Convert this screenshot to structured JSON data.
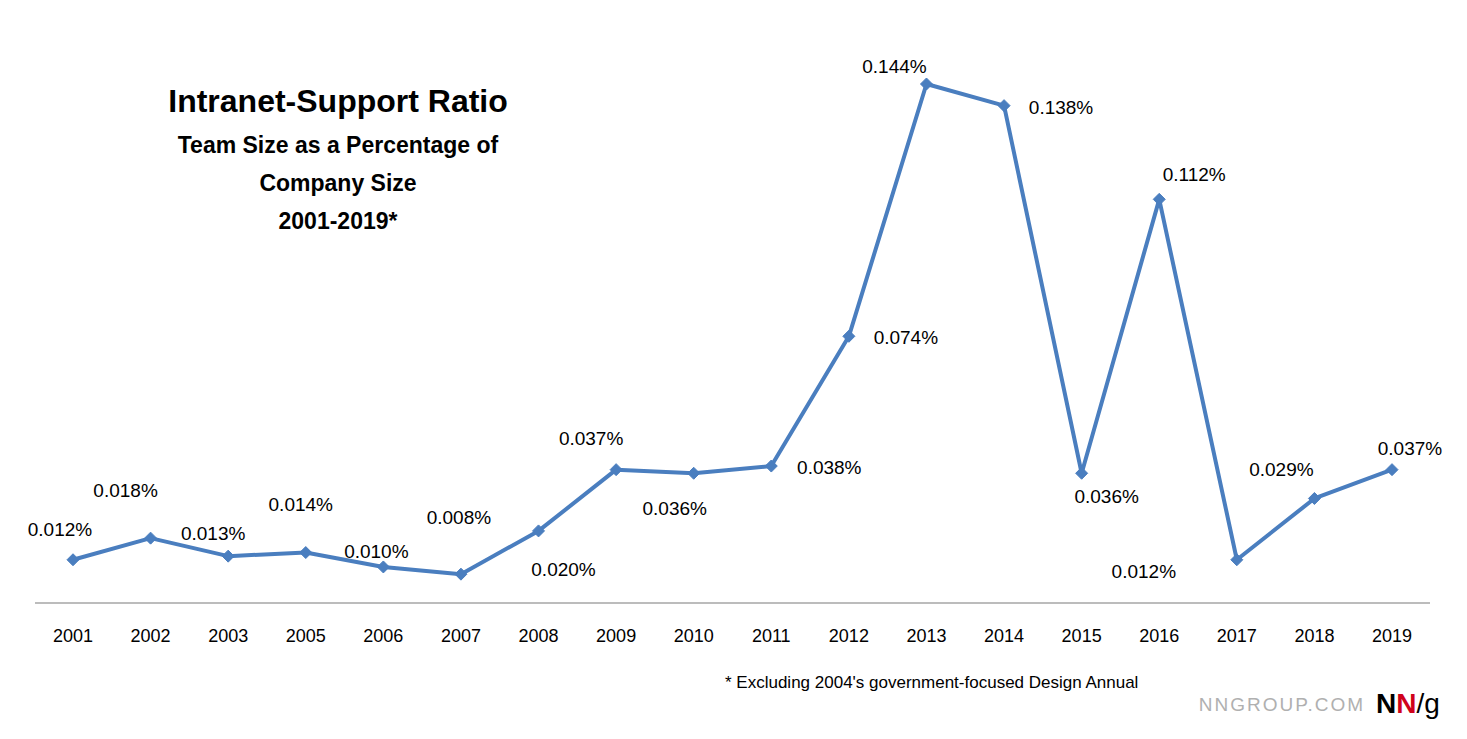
{
  "chart_data": {
    "type": "line",
    "title": "Intranet-Support Ratio",
    "subtitle": [
      "Team Size as a Percentage of",
      "Company Size",
      "2001-2019*"
    ],
    "categories": [
      "2001",
      "2002",
      "2003",
      "2005",
      "2006",
      "2007",
      "2008",
      "2009",
      "2010",
      "2011",
      "2012",
      "2013",
      "2014",
      "2015",
      "2016",
      "2017",
      "2018",
      "2019"
    ],
    "values": [
      0.012,
      0.018,
      0.013,
      0.014,
      0.01,
      0.008,
      0.02,
      0.037,
      0.036,
      0.038,
      0.074,
      0.144,
      0.138,
      0.036,
      0.112,
      0.012,
      0.029,
      0.037
    ],
    "value_labels": [
      "0.012%",
      "0.018%",
      "0.013%",
      "0.014%",
      "0.010%",
      "0.008%",
      "0.020%",
      "0.037%",
      "0.036%",
      "0.038%",
      "0.074%",
      "0.144%",
      "0.138%",
      "0.036%",
      "0.112%",
      "0.012%",
      "0.029%",
      "0.037%"
    ],
    "color": "#4a7ebf",
    "marker": "diamond",
    "line_style": "solid",
    "data_labels": true,
    "grid": false,
    "tick_labels": "x",
    "ylim": [
      0,
      0.144
    ],
    "annotations": [
      "* Excluding 2004's government-focused Design Annual",
      "NNGROUP.COM"
    ],
    "logo": [
      "N",
      "N",
      "/g"
    ]
  }
}
